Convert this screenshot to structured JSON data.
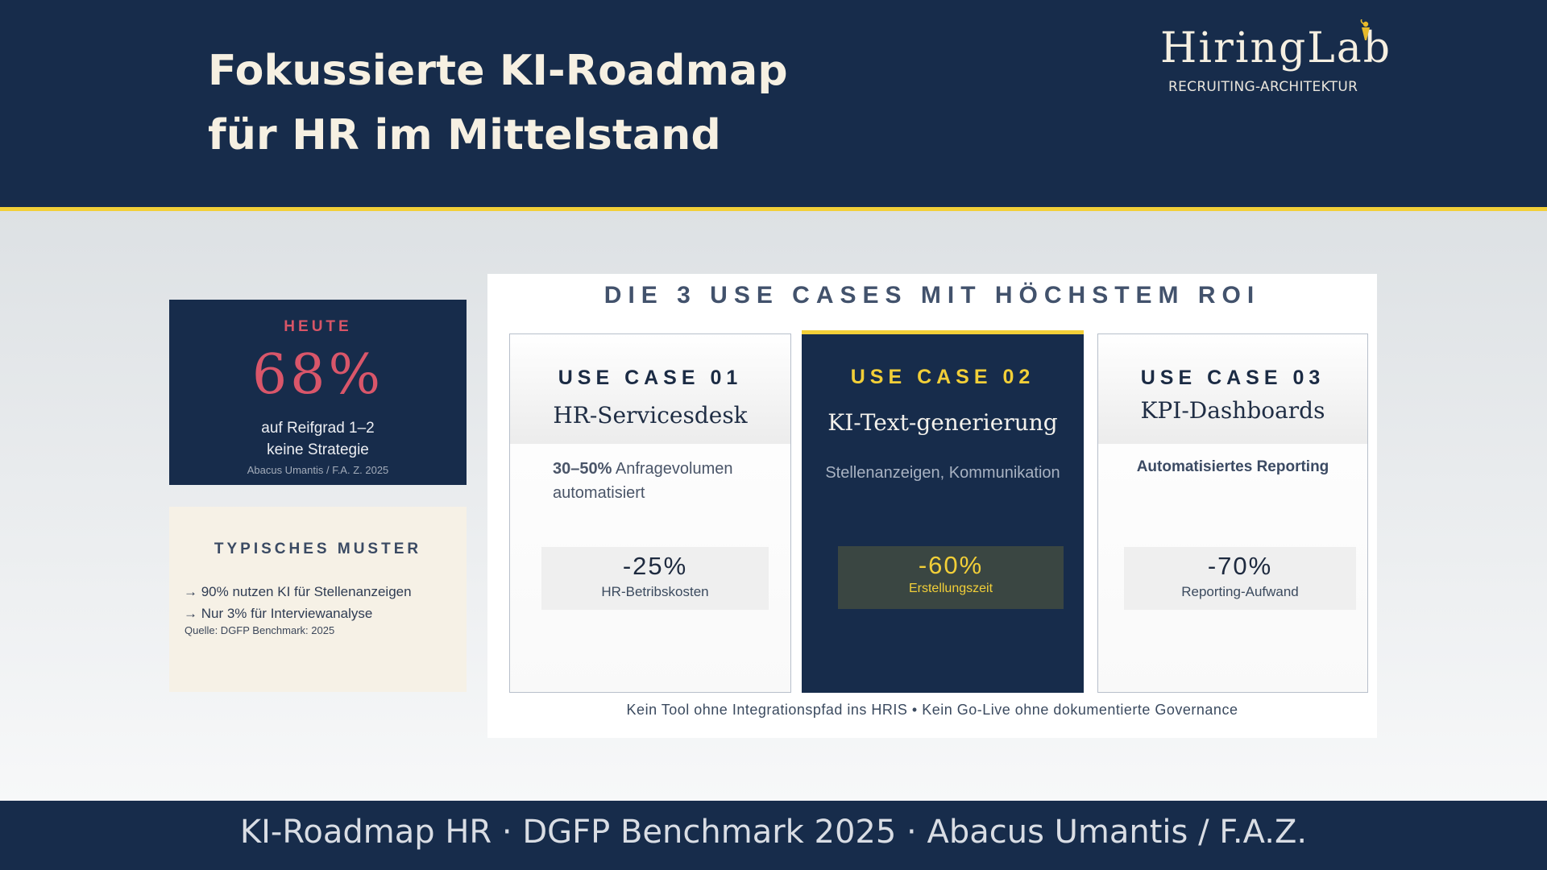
{
  "header": {
    "title_line1": "Fokussierte KI-Roadmap",
    "title_line2": "für HR im Mittelstand",
    "logo_word": "HiringLab",
    "logo_sub": "RECRUITING-ARCHITEKTUR"
  },
  "today": {
    "label": "HEUTE",
    "value": "68%",
    "desc_line1": "auf Reifgrad 1–2",
    "desc_line2": "keine Strategie",
    "source": "Abacus Umantis / F.A. Z. 2025"
  },
  "pattern": {
    "label": "TYPISCHES MUSTER",
    "items": [
      "→ 90% nutzen KI für Stellenanzeigen",
      "→ Nur 3% für Interviewanalyse"
    ],
    "source": "Quelle: DGFP Benchmark: 2025"
  },
  "roi": {
    "heading": "DIE 3 USE CASES MIT HÖCHSTEM ROI",
    "footer": "Kein Tool ohne Integrationspfad ins HRIS • Kein Go-Live ohne dokumentierte Governance",
    "cases": [
      {
        "number": "USE CASE 01",
        "title": "HR-Servicesdesk",
        "desc_bold": "30–50%",
        "desc_rest_line1": " Anfragevolumen",
        "desc_line2": "automatisiert",
        "kpi_value": "-25%",
        "kpi_label": "HR-Betribskosten"
      },
      {
        "number": "USE CASE 02",
        "title": "KI-Text-generierung",
        "desc": "Stellenanzeigen, Kommunikation",
        "kpi_value": "-60%",
        "kpi_label": "Erstellungszeit"
      },
      {
        "number": "USE CASE 03",
        "title": "KPI-Dashboards",
        "desc": "Automatisiertes Reporting",
        "kpi_value": "-70%",
        "kpi_label": "Reporting-Aufwand"
      }
    ]
  },
  "footer": {
    "text": "KI-Roadmap HR · DGFP Benchmark 2025 · Abacus Umantis / F.A.Z."
  },
  "colors": {
    "navy": "#172c4b",
    "gold": "#f2cf38",
    "accent_red": "#d9566a",
    "cream": "#f6f1e6"
  }
}
